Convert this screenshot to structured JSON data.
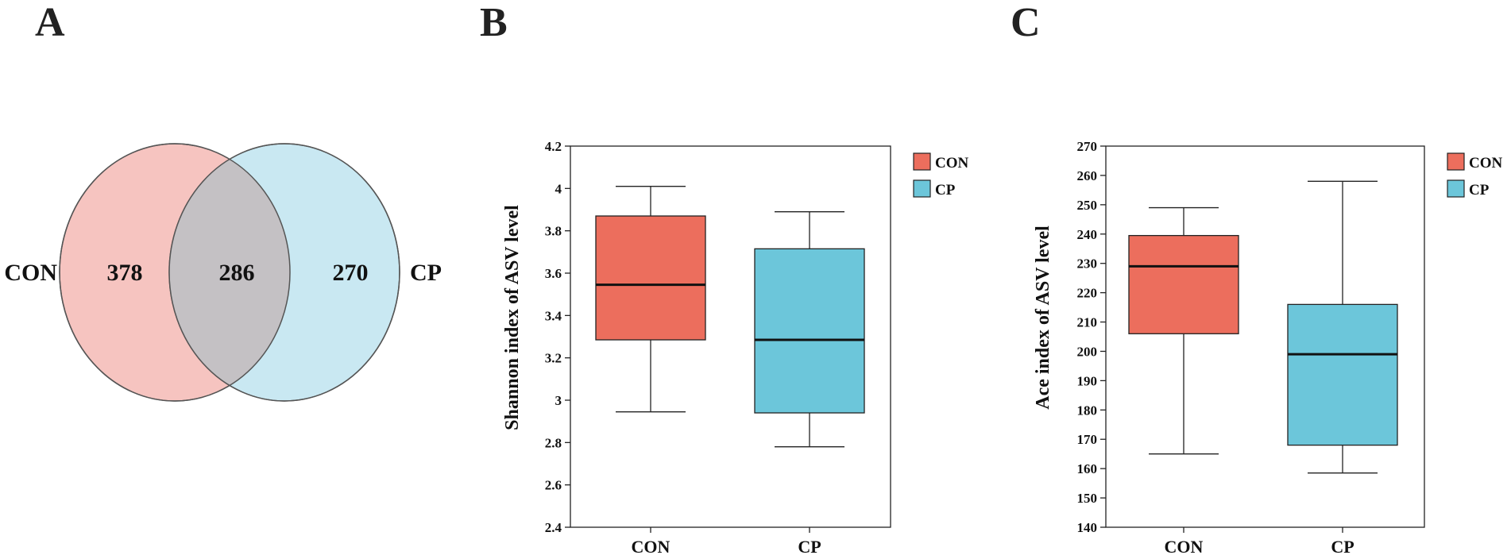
{
  "panels": {
    "a": {
      "letter": "A"
    },
    "b": {
      "letter": "B"
    },
    "c": {
      "letter": "C"
    }
  },
  "colors": {
    "con": "#EC6E5D",
    "cp": "#6CC6DA",
    "venn_con": "#F6C4C0",
    "venn_cp": "#C9E8F2",
    "venn_overlap": "#C4C1C4"
  },
  "chart_data": [
    {
      "type": "venn",
      "sets": [
        "CON",
        "CP"
      ],
      "counts": {
        "con_only": "378",
        "overlap": "286",
        "cp_only": "270"
      }
    },
    {
      "type": "boxplot",
      "ylabel": "Shannon index of ASV level",
      "ylim": [
        2.4,
        4.2
      ],
      "yticks": [
        "2.4",
        "2.6",
        "2.8",
        "3",
        "3.2",
        "3.4",
        "3.6",
        "3.8",
        "4",
        "4.2"
      ],
      "categories": [
        "CON",
        "CP"
      ],
      "legend": [
        "CON",
        "CP"
      ],
      "legend_position": "top-right outside",
      "series": [
        {
          "name": "CON",
          "min": 2.945,
          "q1": 3.285,
          "median": 3.545,
          "q3": 3.87,
          "max": 4.01
        },
        {
          "name": "CP",
          "min": 2.78,
          "q1": 2.94,
          "median": 3.285,
          "q3": 3.715,
          "max": 3.89
        }
      ]
    },
    {
      "type": "boxplot",
      "ylabel": "Ace index of ASV level",
      "ylim": [
        140,
        270
      ],
      "yticks": [
        "140",
        "150",
        "160",
        "170",
        "180",
        "190",
        "200",
        "210",
        "220",
        "230",
        "240",
        "250",
        "260",
        "270"
      ],
      "categories": [
        "CON",
        "CP"
      ],
      "legend": [
        "CON",
        "CP"
      ],
      "legend_position": "top-right outside",
      "series": [
        {
          "name": "CON",
          "min": 165,
          "q1": 206,
          "median": 229,
          "q3": 239.5,
          "max": 249
        },
        {
          "name": "CP",
          "min": 158.5,
          "q1": 168,
          "median": 199,
          "q3": 216,
          "max": 258
        }
      ]
    }
  ]
}
